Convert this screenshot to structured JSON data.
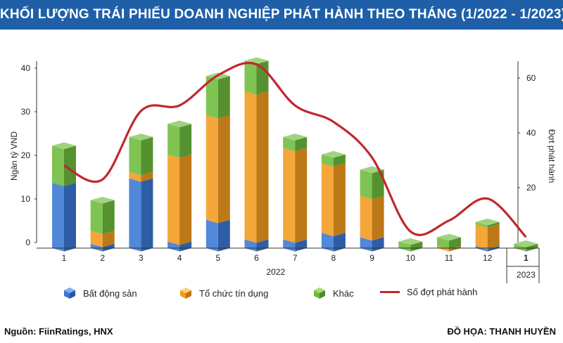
{
  "header": {
    "title": "KHỐI LƯỢNG TRÁI PHIẾU DOANH NGHIỆP PHÁT HÀNH THEO THÁNG (1/2022 - 1/2023)"
  },
  "footer": {
    "source": "Nguồn: FiinRatings, HNX",
    "credit": "ĐỒ HỌA: THANH HUYỀN"
  },
  "colors": {
    "header_bg": "#1f5fa8",
    "bat_dong_san": "#3a78d4",
    "to_chuc_tin_dung": "#f29a1e",
    "khac": "#6dbb3c",
    "so_dot": "#c0282d"
  },
  "chart_data": {
    "type": "bar",
    "stacked": true,
    "categories": [
      "1",
      "2",
      "3",
      "4",
      "5",
      "6",
      "7",
      "8",
      "9",
      "10",
      "11",
      "12",
      "1"
    ],
    "year_groups": [
      {
        "label": "2022",
        "from": 0,
        "to": 11
      },
      {
        "label": "2023",
        "from": 12,
        "to": 12
      }
    ],
    "ylabel": "Ngàn tỷ VND",
    "y2label": "Đợt phát hành",
    "ylim": [
      0,
      45
    ],
    "y_ticks": [
      0,
      10,
      20,
      30,
      40
    ],
    "y2lim": [
      0,
      75
    ],
    "y2_ticks": [
      20,
      40,
      60
    ],
    "series": [
      {
        "name": "Bất động sản",
        "values": [
          15,
          1,
          16,
          1.5,
          6.5,
          2,
          2,
          3.5,
          2.5,
          0,
          0,
          0.5,
          0
        ]
      },
      {
        "name": "Tổ chức tín dụng",
        "values": [
          0,
          3,
          1.5,
          20,
          24,
          34,
          21,
          16,
          9.5,
          0,
          0.5,
          5,
          0
        ]
      },
      {
        "name": "Khác",
        "values": [
          8.5,
          7,
          8,
          7,
          9,
          7,
          2.5,
          2,
          6,
          1.5,
          2,
          0.5,
          1
        ]
      }
    ],
    "line_series": {
      "name": "Số đợt phát hành",
      "axis": "right",
      "values": [
        28,
        23,
        48,
        50,
        61,
        65,
        50,
        44,
        31,
        4,
        8,
        16,
        2
      ]
    },
    "grid": false,
    "legend": "bottom"
  }
}
